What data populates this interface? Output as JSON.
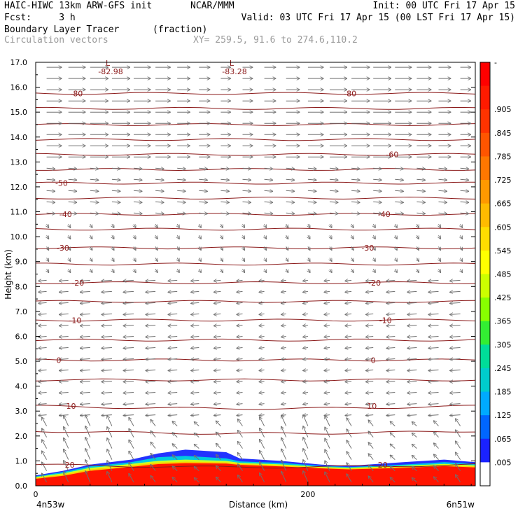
{
  "header": {
    "model": "HAIC-HIWC 13km ARW-GFS init",
    "org": "NCAR/MMM",
    "init": "Init: 00 UTC Fri 17 Apr 15",
    "fcst": "Fcst:     3 h",
    "valid": "Valid: 03 UTC Fri 17 Apr 15 (00 LST Fri 17 Apr 15)",
    "field_name": "Boundary Layer Tracer",
    "field_units": "(fraction)",
    "vector_label": "Circulation vectors",
    "xy_label": "XY= 259.5, 91.6 to 274.6,110.2"
  },
  "chart_data": {
    "type": "heatmap",
    "xlabel": "Distance (km)",
    "ylabel": "Height (km)",
    "xlim": [
      0,
      323
    ],
    "ylim": [
      0,
      17
    ],
    "x_ticks": [
      "0",
      "200"
    ],
    "y_ticks": [
      "0.0",
      "1.0",
      "2.0",
      "3.0",
      "4.0",
      "5.0",
      "6.0",
      "7.0",
      "8.0",
      "9.0",
      "10.0",
      "11.0",
      "12.0",
      "13.0",
      "14.0",
      "15.0",
      "16.0",
      "17.0"
    ],
    "endpoint_labels": {
      "left": "4n53w",
      "right": "6n51w"
    },
    "colorbar_ticks": [
      "-",
      ".905",
      ".845",
      ".785",
      ".725",
      ".665",
      ".605",
      ".545",
      ".485",
      ".425",
      ".365",
      ".305",
      ".245",
      ".185",
      ".125",
      ".065",
      ".005"
    ],
    "colorbar_colors": [
      "#ff0000",
      "#ff1a00",
      "#ff3300",
      "#ff5500",
      "#ff7700",
      "#ff9900",
      "#ffbb00",
      "#ffdd00",
      "#ffff00",
      "#ccff00",
      "#88ff00",
      "#33ee33",
      "#00dd99",
      "#00cccc",
      "#00aaff",
      "#0066ff",
      "#1a22ff",
      "#ffffff"
    ],
    "temperature_contours": [
      {
        "level": 20,
        "y": 0.85,
        "labels": [
          {
            "x": 25,
            "text": "20"
          },
          {
            "x": 255,
            "text": "20"
          }
        ]
      },
      {
        "level": 10,
        "y": 3.2,
        "labels": [
          {
            "x": 26,
            "text": "10"
          },
          {
            "x": 247,
            "text": "10"
          }
        ]
      },
      {
        "level": 0,
        "y": 5.05,
        "labels": [
          {
            "x": 17,
            "text": "0"
          },
          {
            "x": 248,
            "text": "0"
          }
        ]
      },
      {
        "level": -10,
        "y": 6.65,
        "labels": [
          {
            "x": 29,
            "text": "-10"
          },
          {
            "x": 257,
            "text": "-10"
          }
        ]
      },
      {
        "level": -20,
        "y": 8.15,
        "labels": [
          {
            "x": 31,
            "text": "-20"
          },
          {
            "x": 249,
            "text": "-20"
          }
        ]
      },
      {
        "level": -30,
        "y": 9.55,
        "labels": [
          {
            "x": 20,
            "text": "-30"
          },
          {
            "x": 244,
            "text": "-30"
          }
        ]
      },
      {
        "level": -40,
        "y": 10.9,
        "labels": [
          {
            "x": 22,
            "text": "-40"
          },
          {
            "x": 256,
            "text": "-40"
          }
        ]
      },
      {
        "level": -50,
        "y": 12.15,
        "labels": [
          {
            "x": 19,
            "text": "-50"
          }
        ]
      },
      {
        "level": -60,
        "y": 13.3,
        "labels": [
          {
            "x": 262,
            "text": "-60"
          }
        ]
      },
      {
        "level": -80,
        "y": 15.75,
        "labels": [
          {
            "x": 30,
            "text": "-80"
          },
          {
            "x": 231,
            "text": "-80"
          }
        ]
      }
    ],
    "extra_contour_heights": [
      2.2,
      4.25,
      5.85,
      7.4,
      8.9,
      10.3,
      11.55,
      12.7,
      13.9,
      14.5,
      15.15
    ],
    "lows": [
      {
        "x": 53,
        "y": 16.75,
        "mark": "L",
        "value": "-82.98"
      },
      {
        "x": 144,
        "y": 16.75,
        "mark": "L",
        "value": "-83.28"
      }
    ],
    "tracer_layers": [
      {
        "value": 0.05,
        "color": "#2233ff",
        "top": [
          [
            0,
            0.42
          ],
          [
            20,
            0.6
          ],
          [
            40,
            0.85
          ],
          [
            70,
            1.05
          ],
          [
            90,
            1.3
          ],
          [
            110,
            1.45
          ],
          [
            140,
            1.35
          ],
          [
            150,
            1.1
          ],
          [
            180,
            1.0
          ],
          [
            210,
            0.85
          ],
          [
            230,
            0.8
          ],
          [
            270,
            0.95
          ],
          [
            300,
            1.05
          ],
          [
            323,
            0.95
          ]
        ]
      },
      {
        "value": 0.3,
        "color": "#00ccdd",
        "top": [
          [
            0,
            0.38
          ],
          [
            20,
            0.55
          ],
          [
            40,
            0.78
          ],
          [
            70,
            0.95
          ],
          [
            90,
            1.15
          ],
          [
            110,
            1.2
          ],
          [
            140,
            1.1
          ],
          [
            150,
            0.98
          ],
          [
            180,
            0.92
          ],
          [
            210,
            0.8
          ],
          [
            230,
            0.75
          ],
          [
            270,
            0.85
          ],
          [
            300,
            0.95
          ],
          [
            323,
            0.88
          ]
        ]
      },
      {
        "value": 0.6,
        "color": "#ccff22",
        "top": [
          [
            0,
            0.35
          ],
          [
            20,
            0.5
          ],
          [
            40,
            0.72
          ],
          [
            70,
            0.88
          ],
          [
            90,
            1.0
          ],
          [
            110,
            1.05
          ],
          [
            140,
            1.0
          ],
          [
            150,
            0.92
          ],
          [
            180,
            0.86
          ],
          [
            210,
            0.76
          ],
          [
            230,
            0.72
          ],
          [
            270,
            0.8
          ],
          [
            300,
            0.88
          ],
          [
            323,
            0.82
          ]
        ]
      },
      {
        "value": 0.8,
        "color": "#ffcc00",
        "top": [
          [
            0,
            0.32
          ],
          [
            20,
            0.45
          ],
          [
            40,
            0.66
          ],
          [
            70,
            0.82
          ],
          [
            90,
            0.93
          ],
          [
            110,
            0.97
          ],
          [
            140,
            0.94
          ],
          [
            150,
            0.88
          ],
          [
            180,
            0.82
          ],
          [
            210,
            0.73
          ],
          [
            230,
            0.69
          ],
          [
            270,
            0.76
          ],
          [
            300,
            0.83
          ],
          [
            323,
            0.78
          ]
        ]
      },
      {
        "value": 0.95,
        "color": "#ff1400",
        "top": [
          [
            0,
            0.28
          ],
          [
            20,
            0.4
          ],
          [
            40,
            0.6
          ],
          [
            70,
            0.76
          ],
          [
            90,
            0.87
          ],
          [
            110,
            0.91
          ],
          [
            140,
            0.89
          ],
          [
            150,
            0.84
          ],
          [
            180,
            0.78
          ],
          [
            210,
            0.7
          ],
          [
            230,
            0.66
          ],
          [
            270,
            0.72
          ],
          [
            300,
            0.79
          ],
          [
            323,
            0.74
          ]
        ]
      }
    ],
    "vector_grid": {
      "x_spacing_km": 16,
      "y_spacing_km": 0.45
    }
  }
}
